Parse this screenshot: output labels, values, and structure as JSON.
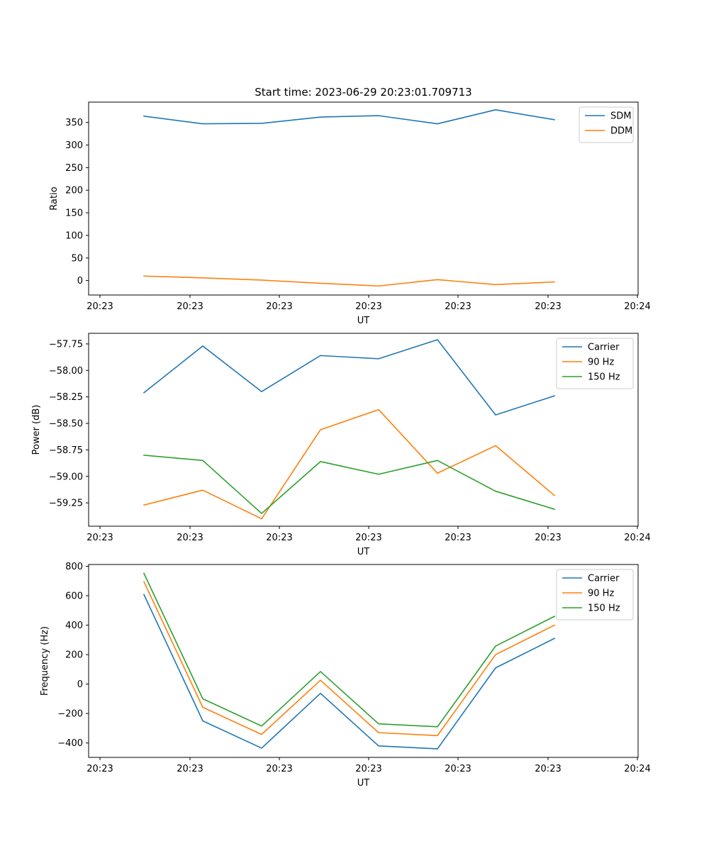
{
  "chart_data": [
    {
      "type": "line",
      "title": "Start time: 2023-06-29 20:23:01.709713",
      "xlabel": "UT",
      "ylabel": "Ratio",
      "x_tick_labels": [
        "20:23",
        "20:23",
        "20:23",
        "20:23",
        "20:23",
        "20:23",
        "20:24"
      ],
      "ylim": [
        -32,
        395
      ],
      "y_ticks": [
        0,
        50,
        100,
        150,
        200,
        250,
        300,
        350
      ],
      "y_tick_labels": [
        "0",
        "50",
        "100",
        "150",
        "200",
        "250",
        "300",
        "350"
      ],
      "legend": "top-right",
      "series": [
        {
          "name": "SDM",
          "color": "#1f77b4",
          "values": [
            364,
            347,
            348,
            362,
            365,
            347,
            378,
            356
          ]
        },
        {
          "name": "DDM",
          "color": "#ff7f0e",
          "values": [
            10,
            6,
            1,
            -6,
            -12,
            2,
            -9,
            -3
          ]
        }
      ]
    },
    {
      "type": "line",
      "title": "",
      "xlabel": "UT",
      "ylabel": "Power (dB)",
      "x_tick_labels": [
        "20:23",
        "20:23",
        "20:23",
        "20:23",
        "20:23",
        "20:23",
        "20:24"
      ],
      "ylim": [
        -59.47,
        -57.65
      ],
      "y_ticks": [
        -59.25,
        -59.0,
        -58.75,
        -58.5,
        -58.25,
        -58.0,
        -57.75
      ],
      "y_tick_labels": [
        "−59.25",
        "−59.00",
        "−58.75",
        "−58.50",
        "−58.25",
        "−58.00",
        "−57.75"
      ],
      "legend": "top-right",
      "series": [
        {
          "name": "Carrier",
          "color": "#1f77b4",
          "values": [
            -58.21,
            -57.77,
            -58.2,
            -57.86,
            -57.89,
            -57.71,
            -58.42,
            -58.24
          ]
        },
        {
          "name": "90 Hz",
          "color": "#ff7f0e",
          "values": [
            -59.27,
            -59.13,
            -59.4,
            -58.56,
            -58.37,
            -58.97,
            -58.71,
            -59.18
          ]
        },
        {
          "name": "150 Hz",
          "color": "#2ca02c",
          "values": [
            -58.8,
            -58.85,
            -59.35,
            -58.86,
            -58.98,
            -58.85,
            -59.14,
            -59.31
          ]
        }
      ]
    },
    {
      "type": "line",
      "title": "",
      "xlabel": "UT",
      "ylabel": "Frequency (Hz)",
      "x_tick_labels": [
        "20:23",
        "20:23",
        "20:23",
        "20:23",
        "20:23",
        "20:23",
        "20:24"
      ],
      "ylim": [
        -498,
        812
      ],
      "y_ticks": [
        -400,
        -200,
        0,
        200,
        400,
        600,
        800
      ],
      "y_tick_labels": [
        "−400",
        "−200",
        "0",
        "200",
        "400",
        "600",
        "800"
      ],
      "legend": "top-right",
      "series": [
        {
          "name": "Carrier",
          "color": "#1f77b4",
          "values": [
            608,
            -250,
            -435,
            -63,
            -420,
            -440,
            110,
            310
          ]
        },
        {
          "name": "90 Hz",
          "color": "#ff7f0e",
          "values": [
            695,
            -158,
            -342,
            26,
            -330,
            -350,
            200,
            400
          ]
        },
        {
          "name": "150 Hz",
          "color": "#2ca02c",
          "values": [
            752,
            -100,
            -285,
            85,
            -270,
            -290,
            258,
            460
          ]
        }
      ]
    }
  ]
}
